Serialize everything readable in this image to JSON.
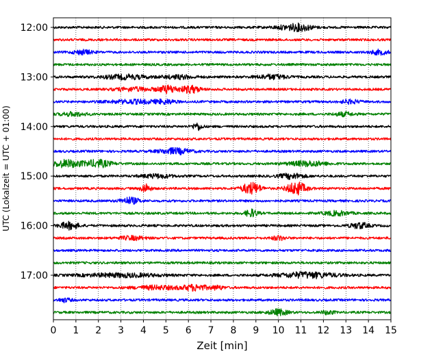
{
  "chart_data": {
    "type": "line",
    "title": "",
    "xlabel": "Zeit  [min]",
    "ylabel": "UTC (Lokalzeit = UTC + 01:00)",
    "xlim": [
      0,
      15
    ],
    "xticks": [
      0,
      1,
      2,
      3,
      4,
      5,
      6,
      7,
      8,
      9,
      10,
      11,
      12,
      13,
      14,
      15
    ],
    "yticks": [
      {
        "label": "12:00",
        "trace": 0
      },
      {
        "label": "13:00",
        "trace": 4
      },
      {
        "label": "14:00",
        "trace": 8
      },
      {
        "label": "15:00",
        "trace": 12
      },
      {
        "label": "16:00",
        "trace": 16
      },
      {
        "label": "17:00",
        "trace": 20
      }
    ],
    "grid": "vertical dotted",
    "trace_interval_min": 15,
    "traces": [
      {
        "start": "12:00",
        "color": "#000000",
        "bursts": [
          [
            10.6,
            3.5,
            0.5
          ],
          [
            11.1,
            2.5,
            0.3
          ]
        ]
      },
      {
        "start": "12:15",
        "color": "#ff0000",
        "bursts": []
      },
      {
        "start": "12:30",
        "color": "#0000ff",
        "bursts": [
          [
            1.3,
            3,
            0.3
          ],
          [
            14.5,
            3,
            0.3
          ]
        ]
      },
      {
        "start": "12:45",
        "color": "#008000",
        "bursts": []
      },
      {
        "start": "13:00",
        "color": "#000000",
        "bursts": [
          [
            3.2,
            3,
            0.7
          ],
          [
            5.6,
            2.5,
            0.5
          ],
          [
            9.7,
            3,
            0.5
          ]
        ]
      },
      {
        "start": "13:15",
        "color": "#ff0000",
        "bursts": [
          [
            3.6,
            2.5,
            0.6
          ],
          [
            5.1,
            5,
            0.3
          ],
          [
            6.1,
            5,
            0.3
          ]
        ]
      },
      {
        "start": "13:30",
        "color": "#0000ff",
        "bursts": [
          [
            3.6,
            2.5,
            0.8
          ],
          [
            5.0,
            2.5,
            0.3
          ],
          [
            13.2,
            2.5,
            0.3
          ]
        ]
      },
      {
        "start": "13:45",
        "color": "#008000",
        "bursts": [
          [
            0.9,
            2.5,
            0.4
          ],
          [
            12.9,
            2.5,
            0.3
          ]
        ]
      },
      {
        "start": "14:00",
        "color": "#000000",
        "bursts": [
          [
            6.4,
            5,
            0.15
          ]
        ]
      },
      {
        "start": "14:15",
        "color": "#ff0000",
        "bursts": []
      },
      {
        "start": "14:30",
        "color": "#0000ff",
        "bursts": [
          [
            5.4,
            4,
            0.5
          ]
        ]
      },
      {
        "start": "14:45",
        "color": "#008000",
        "bursts": [
          [
            0.6,
            5,
            0.5
          ],
          [
            2.0,
            5,
            0.4
          ],
          [
            11.3,
            3.5,
            0.6
          ]
        ]
      },
      {
        "start": "15:00",
        "color": "#000000",
        "bursts": [
          [
            4.6,
            2.5,
            0.5
          ],
          [
            10.6,
            3.5,
            0.4
          ]
        ]
      },
      {
        "start": "15:15",
        "color": "#ff0000",
        "bursts": [
          [
            4.1,
            6,
            0.15
          ],
          [
            8.8,
            8,
            0.3
          ],
          [
            10.8,
            9,
            0.3
          ]
        ]
      },
      {
        "start": "15:30",
        "color": "#0000ff",
        "bursts": [
          [
            3.4,
            4.5,
            0.3
          ]
        ]
      },
      {
        "start": "15:45",
        "color": "#008000",
        "bursts": [
          [
            8.8,
            5,
            0.2
          ],
          [
            12.6,
            3,
            0.4
          ]
        ]
      },
      {
        "start": "16:00",
        "color": "#000000",
        "bursts": [
          [
            0.7,
            5,
            0.3
          ],
          [
            13.6,
            4,
            0.3
          ]
        ]
      },
      {
        "start": "16:15",
        "color": "#ff0000",
        "bursts": [
          [
            3.5,
            2.5,
            0.4
          ],
          [
            10.0,
            3,
            0.2
          ]
        ]
      },
      {
        "start": "16:30",
        "color": "#0000ff",
        "bursts": []
      },
      {
        "start": "16:45",
        "color": "#008000",
        "bursts": []
      },
      {
        "start": "17:00",
        "color": "#000000",
        "bursts": [
          [
            3.0,
            2.5,
            1.2
          ],
          [
            11.3,
            4,
            0.9
          ]
        ]
      },
      {
        "start": "17:15",
        "color": "#ff0000",
        "bursts": [
          [
            4.6,
            2.5,
            0.7
          ],
          [
            6.3,
            4,
            0.4
          ],
          [
            7.3,
            2.5,
            0.2
          ]
        ]
      },
      {
        "start": "17:30",
        "color": "#0000ff",
        "bursts": [
          [
            0.5,
            2.5,
            0.2
          ]
        ]
      },
      {
        "start": "17:45",
        "color": "#008000",
        "bursts": [
          [
            10.0,
            4,
            0.3
          ],
          [
            12.2,
            2.5,
            0.2
          ]
        ]
      }
    ]
  }
}
